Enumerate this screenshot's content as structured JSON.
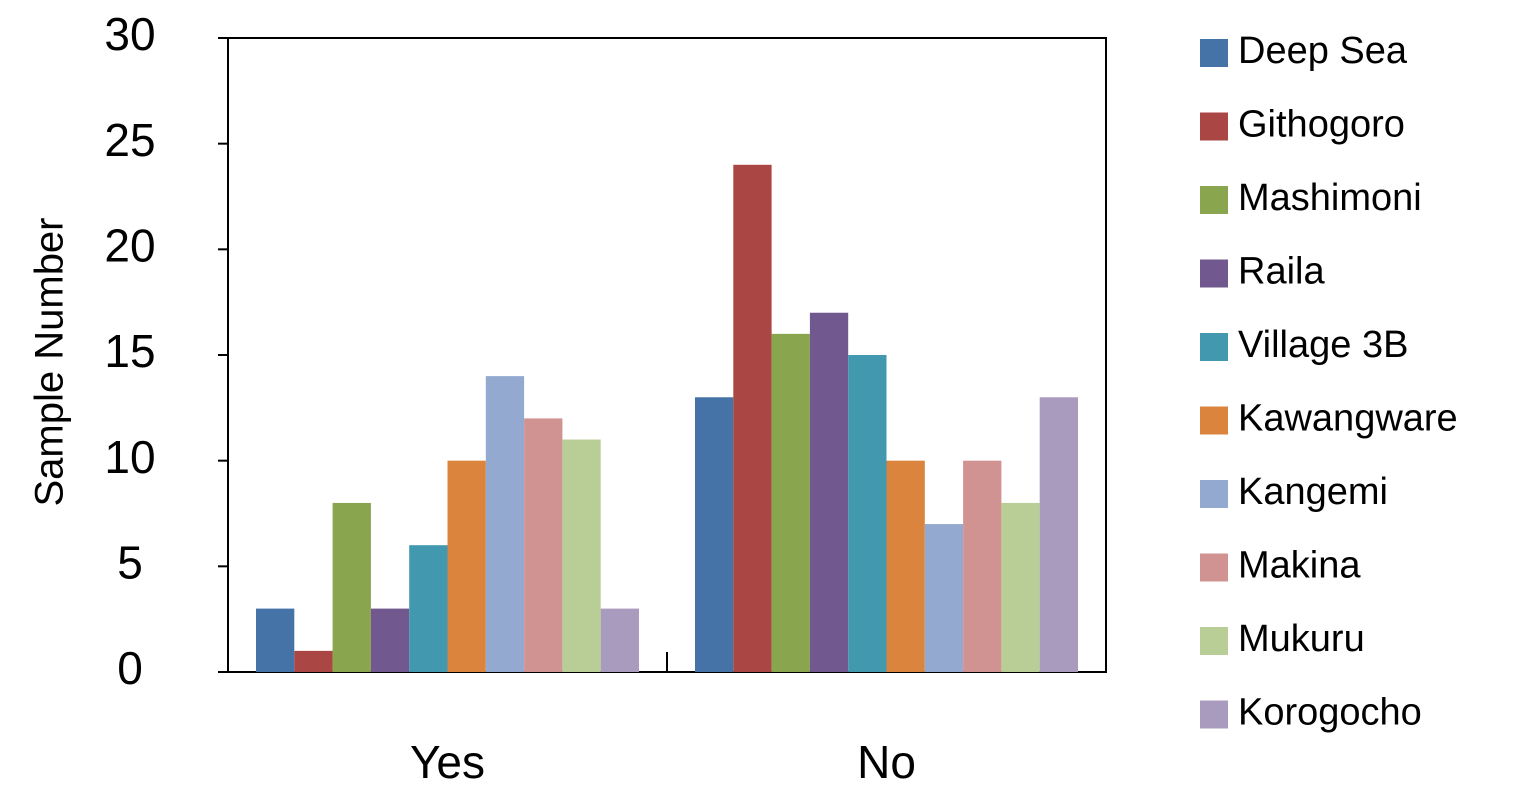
{
  "chart_data": {
    "type": "bar",
    "title": "",
    "xlabel": "",
    "ylabel": "Sample Number",
    "ylim": [
      0,
      30
    ],
    "yticks": [
      0,
      5,
      10,
      15,
      20,
      25,
      30
    ],
    "grid": false,
    "legend_position": "right",
    "categories": [
      "Yes",
      "No"
    ],
    "series": [
      {
        "name": "Deep Sea",
        "color": "#4572A7",
        "values": [
          3,
          13
        ]
      },
      {
        "name": "Githogoro",
        "color": "#AA4643",
        "values": [
          1,
          24
        ]
      },
      {
        "name": "Mashimoni",
        "color": "#89A54E",
        "values": [
          8,
          16
        ]
      },
      {
        "name": "Raila",
        "color": "#71588F",
        "values": [
          3,
          17
        ]
      },
      {
        "name": "Village 3B",
        "color": "#4198AF",
        "values": [
          6,
          15
        ]
      },
      {
        "name": "Kawangware",
        "color": "#DB843D",
        "values": [
          10,
          10
        ]
      },
      {
        "name": "Kangemi",
        "color": "#93A9CF",
        "values": [
          14,
          7
        ]
      },
      {
        "name": "Makina",
        "color": "#D19392",
        "values": [
          12,
          10
        ]
      },
      {
        "name": "Mukuru",
        "color": "#B9CD96",
        "values": [
          11,
          8
        ]
      },
      {
        "name": "Korogocho",
        "color": "#A99BBD",
        "values": [
          3,
          13
        ]
      }
    ]
  }
}
